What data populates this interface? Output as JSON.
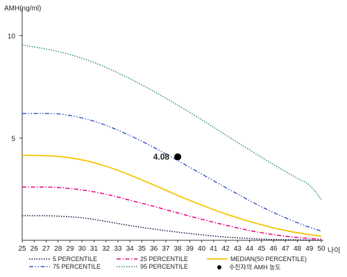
{
  "chart_data": {
    "type": "line",
    "title": "",
    "ylabel": "AMH(ng/ml)",
    "xlabel": "나이",
    "xlim": [
      25,
      50
    ],
    "ylim": [
      0,
      11
    ],
    "yticks": [
      5,
      10
    ],
    "x": [
      25,
      26,
      27,
      28,
      29,
      30,
      31,
      32,
      33,
      34,
      35,
      36,
      37,
      38,
      39,
      40,
      41,
      42,
      43,
      44,
      45,
      46,
      47,
      48,
      49,
      50
    ],
    "series": [
      {
        "name": "5 PERCENTILE",
        "color": "#0a0a3a",
        "dash": "dot",
        "values": [
          1.2,
          1.2,
          1.2,
          1.18,
          1.15,
          1.1,
          1.02,
          0.92,
          0.82,
          0.72,
          0.63,
          0.55,
          0.47,
          0.4,
          0.33,
          0.27,
          0.21,
          0.16,
          0.12,
          0.09,
          0.06,
          0.04,
          0.03,
          0.02,
          0.01,
          0.01
        ]
      },
      {
        "name": "25 PERCENTILE",
        "color": "#e6007e",
        "dash": "dashdot",
        "values": [
          2.6,
          2.6,
          2.6,
          2.58,
          2.53,
          2.46,
          2.37,
          2.25,
          2.11,
          1.96,
          1.81,
          1.66,
          1.5,
          1.34,
          1.18,
          1.03,
          0.88,
          0.74,
          0.6,
          0.48,
          0.37,
          0.28,
          0.2,
          0.14,
          0.09,
          0.06
        ]
      },
      {
        "name": "MEDIAN(50 PERCENTILE)",
        "color": "#f5c400",
        "dash": "solid",
        "values": [
          4.15,
          4.15,
          4.13,
          4.1,
          4.03,
          3.93,
          3.79,
          3.62,
          3.42,
          3.19,
          2.95,
          2.7,
          2.45,
          2.19,
          1.95,
          1.72,
          1.5,
          1.29,
          1.1,
          0.92,
          0.76,
          0.61,
          0.48,
          0.37,
          0.28,
          0.2
        ]
      },
      {
        "name": "75 PERCENTILE",
        "color": "#3a56c8",
        "dash": "dashdotdot",
        "values": [
          6.2,
          6.2,
          6.2,
          6.18,
          6.1,
          5.98,
          5.82,
          5.62,
          5.38,
          5.12,
          4.84,
          4.54,
          4.22,
          3.9,
          3.57,
          3.24,
          2.91,
          2.58,
          2.26,
          1.94,
          1.64,
          1.36,
          1.1,
          0.86,
          0.64,
          0.45
        ]
      },
      {
        "name": "95 PERCENTILE",
        "color": "#2e8b57",
        "dash": "dot",
        "values": [
          9.55,
          9.45,
          9.35,
          9.23,
          9.08,
          8.9,
          8.69,
          8.45,
          8.18,
          7.9,
          7.6,
          7.28,
          6.95,
          6.6,
          6.25,
          5.89,
          5.52,
          5.15,
          4.78,
          4.42,
          4.06,
          3.7,
          3.36,
          3.03,
          2.7,
          2.0
        ]
      }
    ],
    "marker": {
      "name": "수진자의 AMH 농도",
      "x": 38,
      "y": 4.08,
      "label": "4.08",
      "color": "#000000"
    },
    "grid": false,
    "legend_position": "bottom"
  }
}
